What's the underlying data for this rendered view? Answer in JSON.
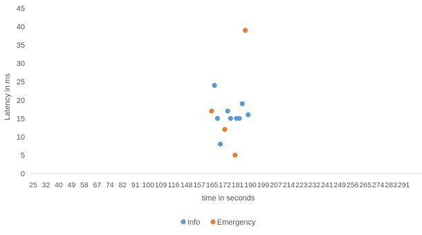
{
  "chart_data": {
    "type": "scatter",
    "title": "",
    "xlabel": "time in seconds",
    "ylabel": "Latency in ms",
    "ylim": [
      0,
      45
    ],
    "yticks": [
      0,
      5,
      10,
      15,
      20,
      25,
      30,
      35,
      40,
      45
    ],
    "xlim": [
      25,
      293
    ],
    "xtick_labels": [
      "25",
      "32",
      "40",
      "49",
      "58",
      "67",
      "74",
      "82",
      "91",
      "100",
      "109",
      "116",
      "148",
      "157",
      "165",
      "172",
      "181",
      "190",
      "199",
      "207",
      "214",
      "223",
      "232",
      "241",
      "249",
      "256",
      "265",
      "274",
      "283",
      "291"
    ],
    "grid": false,
    "legend_position": "bottom",
    "series": [
      {
        "name": "Info",
        "color": "#5B9BD5",
        "points": [
          {
            "x": 151,
            "y": 24
          },
          {
            "x": 153,
            "y": 15
          },
          {
            "x": 155,
            "y": 8
          },
          {
            "x": 160,
            "y": 17
          },
          {
            "x": 162,
            "y": 15
          },
          {
            "x": 166,
            "y": 15
          },
          {
            "x": 168,
            "y": 15
          },
          {
            "x": 170,
            "y": 19
          },
          {
            "x": 174,
            "y": 16
          }
        ]
      },
      {
        "name": "Emergency",
        "color": "#ED7D31",
        "points": [
          {
            "x": 149,
            "y": 17
          },
          {
            "x": 158,
            "y": 12
          },
          {
            "x": 165,
            "y": 5
          },
          {
            "x": 172,
            "y": 39
          }
        ]
      }
    ]
  }
}
